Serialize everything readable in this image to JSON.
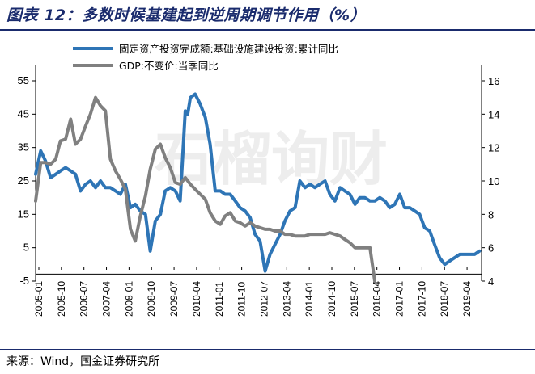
{
  "title": "图表 12：多数时候基建起到逆周期调节作用（%）",
  "source": "来源：Wind，国金证券研究所",
  "watermark": "石榴询财",
  "colors": {
    "series1": "#2e75b6",
    "series2": "#808080",
    "title": "#1a2b6d"
  },
  "chart_data": {
    "type": "line",
    "title": "多数时候基建起到逆周期调节作用（%）",
    "legend_position": "top",
    "left_axis": {
      "ylim": [
        -5,
        55
      ],
      "ticks": [
        -5,
        5,
        15,
        25,
        35,
        45,
        55
      ]
    },
    "right_axis": {
      "ylim": [
        4,
        16
      ],
      "ticks": [
        4,
        6,
        8,
        10,
        12,
        14,
        16
      ]
    },
    "x_tick_labels": [
      "2005-01",
      "2005-10",
      "2006-07",
      "2007-04",
      "2008-01",
      "2008-10",
      "2009-07",
      "2010-04",
      "2011-01",
      "2011-10",
      "2012-07",
      "2013-04",
      "2014-01",
      "2014-10",
      "2015-07",
      "2016-04",
      "2017-01",
      "2017-10",
      "2018-07",
      "2019-04"
    ],
    "series": [
      {
        "name": "固定资产投资完成额:基础设施建设投资:累计同比",
        "axis": "left",
        "points": [
          [
            2005.0,
            27
          ],
          [
            2005.17,
            34
          ],
          [
            2005.33,
            31
          ],
          [
            2005.5,
            26
          ],
          [
            2005.67,
            27
          ],
          [
            2005.83,
            28
          ],
          [
            2006.0,
            29
          ],
          [
            2006.17,
            28
          ],
          [
            2006.33,
            27
          ],
          [
            2006.5,
            22
          ],
          [
            2006.67,
            24
          ],
          [
            2006.83,
            25
          ],
          [
            2007.0,
            23
          ],
          [
            2007.17,
            25
          ],
          [
            2007.33,
            23
          ],
          [
            2007.5,
            23
          ],
          [
            2007.67,
            22
          ],
          [
            2007.83,
            21
          ],
          [
            2008.0,
            24
          ],
          [
            2008.17,
            17
          ],
          [
            2008.33,
            18
          ],
          [
            2008.5,
            16
          ],
          [
            2008.67,
            15
          ],
          [
            2008.83,
            4
          ],
          [
            2009.0,
            13
          ],
          [
            2009.17,
            15
          ],
          [
            2009.33,
            22
          ],
          [
            2009.5,
            23
          ],
          [
            2009.67,
            22
          ],
          [
            2009.83,
            19
          ],
          [
            2010.0,
            46
          ],
          [
            2010.08,
            45
          ],
          [
            2010.17,
            50
          ],
          [
            2010.33,
            51
          ],
          [
            2010.5,
            48
          ],
          [
            2010.67,
            44
          ],
          [
            2010.83,
            36
          ],
          [
            2011.0,
            22
          ],
          [
            2011.17,
            22
          ],
          [
            2011.33,
            21
          ],
          [
            2011.5,
            21
          ],
          [
            2011.67,
            19
          ],
          [
            2011.83,
            17
          ],
          [
            2012.0,
            16
          ],
          [
            2012.17,
            14
          ],
          [
            2012.33,
            9
          ],
          [
            2012.5,
            7
          ],
          [
            2012.67,
            -2
          ],
          [
            2012.83,
            3
          ],
          [
            2013.0,
            6
          ],
          [
            2013.17,
            9
          ],
          [
            2013.33,
            13
          ],
          [
            2013.5,
            16
          ],
          [
            2013.67,
            17
          ],
          [
            2013.83,
            25
          ],
          [
            2014.0,
            23
          ],
          [
            2014.17,
            24
          ],
          [
            2014.33,
            23
          ],
          [
            2014.5,
            24
          ],
          [
            2014.67,
            25
          ],
          [
            2014.83,
            21
          ],
          [
            2015.0,
            19
          ],
          [
            2015.17,
            23
          ],
          [
            2015.33,
            22
          ],
          [
            2015.5,
            21
          ],
          [
            2015.67,
            18
          ],
          [
            2015.83,
            20
          ],
          [
            2016.0,
            20
          ],
          [
            2016.17,
            19
          ],
          [
            2016.33,
            19
          ],
          [
            2016.5,
            20
          ],
          [
            2016.67,
            19
          ],
          [
            2016.83,
            17
          ],
          [
            2017.0,
            18
          ],
          [
            2017.17,
            21
          ],
          [
            2017.33,
            17
          ],
          [
            2017.5,
            17
          ],
          [
            2017.67,
            16
          ],
          [
            2017.83,
            15
          ],
          [
            2018.0,
            11
          ],
          [
            2018.17,
            10
          ],
          [
            2018.33,
            6
          ],
          [
            2018.5,
            2
          ],
          [
            2018.67,
            0
          ],
          [
            2018.83,
            1
          ],
          [
            2019.0,
            2
          ],
          [
            2019.17,
            3
          ],
          [
            2019.33,
            3
          ],
          [
            2019.5,
            3
          ],
          [
            2019.67,
            3
          ],
          [
            2019.83,
            4
          ]
        ]
      },
      {
        "name": "GDP:不变价:当季同比",
        "axis": "right",
        "points": [
          [
            2005.0,
            8.8
          ],
          [
            2005.17,
            11.1
          ],
          [
            2005.33,
            11.1
          ],
          [
            2005.5,
            11.0
          ],
          [
            2005.67,
            11.3
          ],
          [
            2005.83,
            12.4
          ],
          [
            2006.0,
            12.5
          ],
          [
            2006.17,
            13.7
          ],
          [
            2006.33,
            12.2
          ],
          [
            2006.5,
            12.5
          ],
          [
            2006.67,
            13.3
          ],
          [
            2006.83,
            14.0
          ],
          [
            2007.0,
            15.0
          ],
          [
            2007.17,
            14.5
          ],
          [
            2007.33,
            14.2
          ],
          [
            2007.5,
            11.3
          ],
          [
            2007.67,
            10.6
          ],
          [
            2007.83,
            10.1
          ],
          [
            2008.0,
            9.5
          ],
          [
            2008.17,
            7.1
          ],
          [
            2008.33,
            6.4
          ],
          [
            2008.5,
            7.9
          ],
          [
            2008.67,
            9.1
          ],
          [
            2008.83,
            10.7
          ],
          [
            2009.0,
            11.9
          ],
          [
            2009.17,
            12.2
          ],
          [
            2009.33,
            11.4
          ],
          [
            2009.5,
            10.8
          ],
          [
            2009.67,
            9.9
          ],
          [
            2009.83,
            9.8
          ],
          [
            2010.0,
            10.2
          ],
          [
            2010.17,
            9.8
          ],
          [
            2010.33,
            9.5
          ],
          [
            2010.5,
            9.2
          ],
          [
            2010.67,
            8.9
          ],
          [
            2010.83,
            8.1
          ],
          [
            2011.0,
            7.6
          ],
          [
            2011.17,
            7.4
          ],
          [
            2011.33,
            7.9
          ],
          [
            2011.5,
            8.1
          ],
          [
            2011.67,
            7.6
          ],
          [
            2011.83,
            7.5
          ],
          [
            2012.0,
            7.3
          ],
          [
            2012.17,
            7.5
          ],
          [
            2012.33,
            7.3
          ],
          [
            2012.5,
            7.2
          ],
          [
            2012.67,
            7.1
          ],
          [
            2012.83,
            7.1
          ],
          [
            2013.0,
            7.0
          ],
          [
            2013.17,
            7.0
          ],
          [
            2013.33,
            6.8
          ],
          [
            2013.5,
            6.8
          ],
          [
            2013.67,
            6.7
          ],
          [
            2013.83,
            6.7
          ],
          [
            2014.0,
            6.7
          ],
          [
            2014.17,
            6.8
          ],
          [
            2014.33,
            6.8
          ],
          [
            2014.5,
            6.8
          ],
          [
            2014.67,
            6.8
          ],
          [
            2014.83,
            6.9
          ],
          [
            2015.0,
            6.8
          ],
          [
            2015.17,
            6.7
          ],
          [
            2015.33,
            6.5
          ],
          [
            2015.5,
            6.3
          ],
          [
            2015.67,
            6.0
          ],
          [
            2015.83,
            6.0
          ],
          [
            2016.0,
            6.0
          ],
          [
            2016.17,
            6.0
          ],
          [
            2016.33,
            4.0
          ]
        ]
      }
    ]
  }
}
